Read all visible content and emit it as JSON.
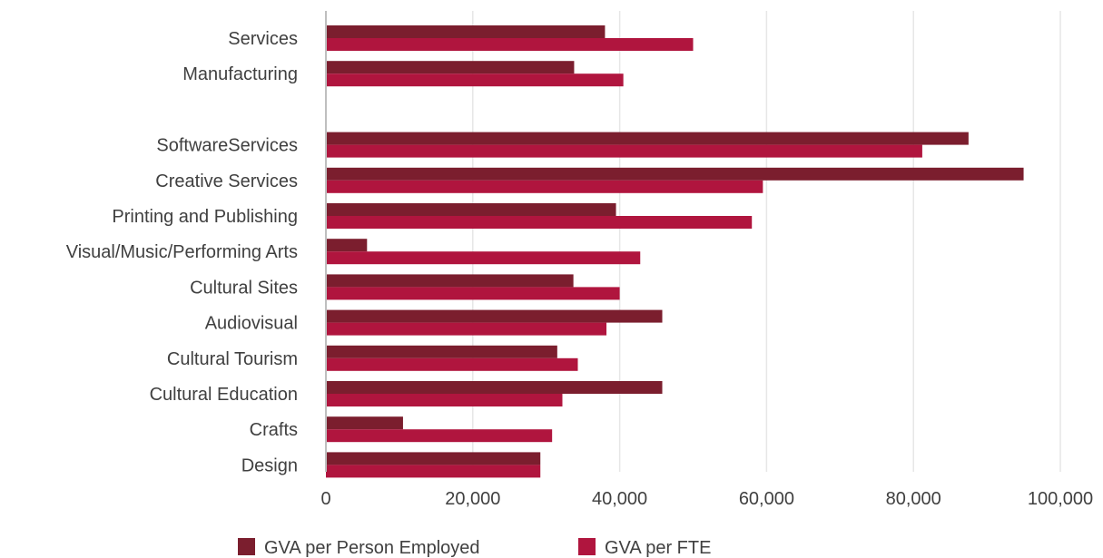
{
  "chart_data": {
    "type": "bar",
    "orientation": "horizontal",
    "categories": [
      "Services",
      "Manufacturing",
      "",
      "SoftwareServices",
      "Creative Services",
      "Printing and Publishing",
      "Visual/Music/Performing Arts",
      "Cultural Sites",
      "Audiovisual",
      "Cultural Tourism",
      "Cultural Education",
      "Crafts",
      "Design"
    ],
    "series": [
      {
        "name": "GVA per Person Employed",
        "color": "#7b1e2e",
        "values": [
          38000,
          33800,
          null,
          87500,
          95000,
          39500,
          5600,
          33700,
          45800,
          31500,
          45800,
          10500,
          29200
        ]
      },
      {
        "name": "GVA per FTE",
        "color": "#b0153e",
        "values": [
          50000,
          40500,
          null,
          81200,
          59500,
          58000,
          42800,
          40000,
          38200,
          34300,
          32200,
          30800,
          29200
        ]
      }
    ],
    "xlim": [
      0,
      100000
    ],
    "xticks": [
      "0",
      "20,000",
      "40,000",
      "60,000",
      "80,000",
      "100,000"
    ],
    "xtick_values": [
      0,
      20000,
      40000,
      60000,
      80000,
      100000
    ],
    "grid": true,
    "legend_position": "bottom"
  }
}
